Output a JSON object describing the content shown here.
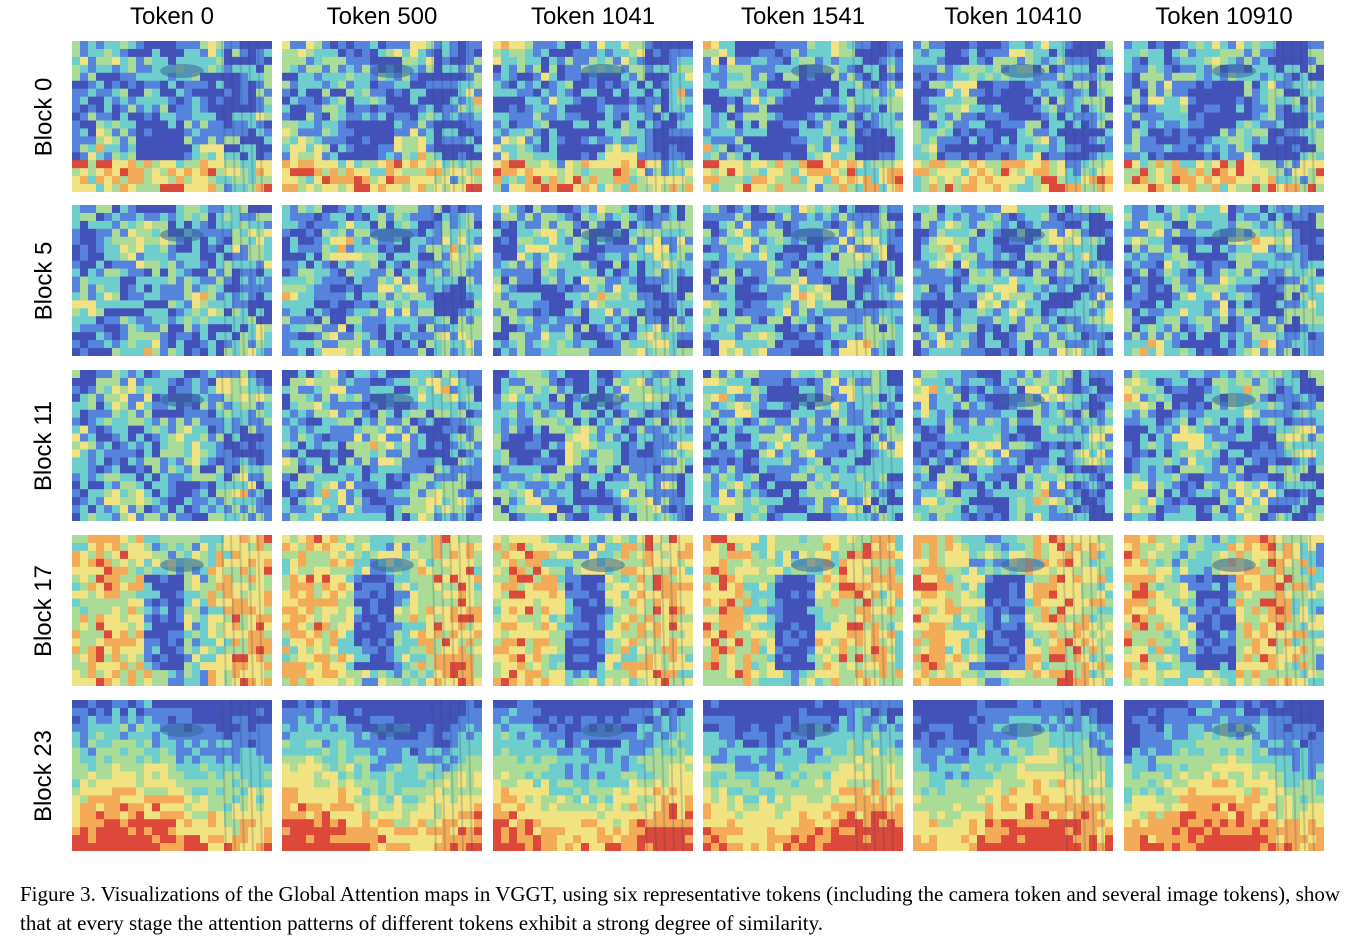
{
  "figure": {
    "columns": [
      "Token 0",
      "Token 500",
      "Token 1041",
      "Token 1541",
      "Token 10410",
      "Token 10910"
    ],
    "rows": [
      "Block 0",
      "Block 5",
      "Block 11",
      "Block 17",
      "Block 23"
    ],
    "colormap": [
      "#2a3bb0",
      "#3f74d8",
      "#5ac8c8",
      "#9fd88a",
      "#f0e070",
      "#f2a040",
      "#d83020"
    ]
  },
  "caption": {
    "text": "Figure 3. Visualizations of the Global Attention maps in VGGT, using six representative tokens (including the camera token and several image tokens), show that at every stage the attention patterns of different tokens exhibit a strong degree of similarity."
  }
}
